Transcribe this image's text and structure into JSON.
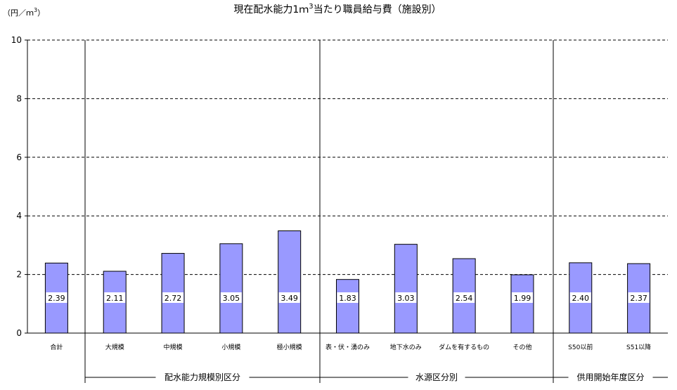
{
  "chart_data": {
    "type": "bar",
    "title_main": "現在配水能力1ｍ",
    "title_sup": "3",
    "title_rest": "当たり職員給与費（施設別）",
    "unit_main": "（円／ｍ",
    "unit_sup": "3",
    "unit_close": "）",
    "ylim": [
      0,
      10
    ],
    "yticks": [
      "0",
      "2",
      "4",
      "6",
      "8",
      "10"
    ],
    "grid": true,
    "colors": {
      "bar": "#9999ff",
      "bar_edge": "#000000"
    },
    "categories": [
      "合計",
      "大規模",
      "中規模",
      "小規模",
      "極小規模",
      "表・伏・湧のみ",
      "地下水のみ",
      "ダムを有するもの",
      "その他",
      "S50以前",
      "S51以降"
    ],
    "values": [
      2.39,
      2.11,
      2.72,
      3.05,
      3.49,
      1.83,
      3.03,
      2.54,
      1.99,
      2.4,
      2.37
    ],
    "value_labels": [
      "2.39",
      "2.11",
      "2.72",
      "3.05",
      "3.49",
      "1.83",
      "3.03",
      "2.54",
      "1.99",
      "2.40",
      "2.37"
    ],
    "groups": [
      {
        "label": "配水能力規模別区分"
      },
      {
        "label": "水源区分別"
      },
      {
        "label": "供用開始年度区分"
      }
    ]
  }
}
